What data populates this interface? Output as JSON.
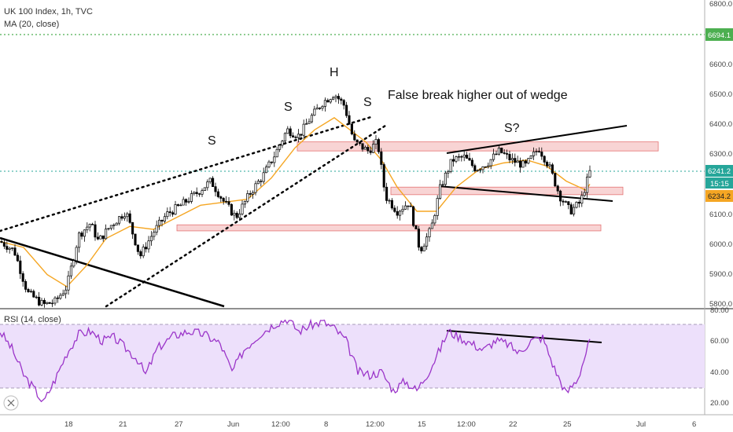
{
  "header": {
    "symbol_line": "UK 100 Index, 1h, TVC",
    "indicator_line": "MA (20, close)"
  },
  "annotations": {
    "s1": "S",
    "s2": "S",
    "h": "H",
    "s3": "S",
    "s_q": "S?",
    "note": "False break higher out of wedge"
  },
  "rsi": {
    "label": "RSI (14, close)"
  },
  "price_axis": {
    "ticks": [
      "6800.0",
      "6700.0",
      "6600.0",
      "6500.0",
      "6400.0",
      "6300.0",
      "6200.0",
      "6100.0",
      "6000.0",
      "5900.0",
      "5800.0"
    ],
    "badges": {
      "level_6694": "6694.1",
      "last": "6241.2",
      "countdown": "15:15",
      "ma_value": "6234.2"
    }
  },
  "rsi_axis": {
    "ticks": [
      "80.00",
      "60.00",
      "40.00",
      "20.00"
    ]
  },
  "time_axis": {
    "ticks": [
      "18",
      "21",
      "27",
      "Jun",
      "12:00",
      "8",
      "12:00",
      "15",
      "12:00",
      "22",
      "25",
      "Jul",
      "6"
    ]
  },
  "colors": {
    "candle": "#000000",
    "ma": "#f5a623",
    "rsi_line": "#9b35c9",
    "rsi_band": "#e8d6fa",
    "zone_fill": "#f6c5c5",
    "zone_border": "#e57373",
    "level_green": "#4caf50",
    "badge_green": "#4caf50"
  },
  "chart_data": {
    "type": "candlestick",
    "symbol": "UK 100 Index",
    "timeframe": "1h",
    "price_range": [
      5790,
      6800
    ],
    "rsi_range": [
      15,
      80
    ],
    "rsi_levels": [
      70,
      30
    ],
    "price_path": [
      [
        0,
        6010
      ],
      [
        18,
        5980
      ],
      [
        35,
        5840
      ],
      [
        55,
        5800
      ],
      [
        70,
        5810
      ],
      [
        85,
        5860
      ],
      [
        100,
        6030
      ],
      [
        115,
        6070
      ],
      [
        125,
        6010
      ],
      [
        140,
        6060
      ],
      [
        160,
        6110
      ],
      [
        178,
        5960
      ],
      [
        195,
        6040
      ],
      [
        212,
        6100
      ],
      [
        230,
        6130
      ],
      [
        250,
        6170
      ],
      [
        268,
        6210
      ],
      [
        285,
        6140
      ],
      [
        300,
        6090
      ],
      [
        318,
        6170
      ],
      [
        335,
        6230
      ],
      [
        350,
        6300
      ],
      [
        365,
        6380
      ],
      [
        380,
        6360
      ],
      [
        395,
        6420
      ],
      [
        410,
        6470
      ],
      [
        425,
        6500
      ],
      [
        438,
        6460
      ],
      [
        450,
        6340
      ],
      [
        468,
        6310
      ],
      [
        480,
        6340
      ],
      [
        490,
        6160
      ],
      [
        505,
        6110
      ],
      [
        520,
        6140
      ],
      [
        534,
        5980
      ],
      [
        548,
        6050
      ],
      [
        560,
        6190
      ],
      [
        575,
        6280
      ],
      [
        590,
        6290
      ],
      [
        605,
        6250
      ],
      [
        620,
        6270
      ],
      [
        635,
        6310
      ],
      [
        650,
        6280
      ],
      [
        668,
        6260
      ],
      [
        685,
        6320
      ],
      [
        698,
        6260
      ],
      [
        712,
        6160
      ],
      [
        725,
        6110
      ],
      [
        738,
        6140
      ],
      [
        750,
        6240
      ]
    ],
    "ma_path": [
      [
        0,
        6010
      ],
      [
        30,
        5990
      ],
      [
        60,
        5900
      ],
      [
        85,
        5860
      ],
      [
        110,
        5930
      ],
      [
        135,
        6020
      ],
      [
        165,
        6060
      ],
      [
        195,
        6050
      ],
      [
        225,
        6090
      ],
      [
        255,
        6130
      ],
      [
        285,
        6140
      ],
      [
        315,
        6150
      ],
      [
        345,
        6220
      ],
      [
        375,
        6320
      ],
      [
        400,
        6380
      ],
      [
        425,
        6420
      ],
      [
        445,
        6380
      ],
      [
        465,
        6340
      ],
      [
        485,
        6280
      ],
      [
        505,
        6190
      ],
      [
        530,
        6110
      ],
      [
        555,
        6110
      ],
      [
        580,
        6190
      ],
      [
        610,
        6250
      ],
      [
        640,
        6270
      ],
      [
        670,
        6280
      ],
      [
        695,
        6260
      ],
      [
        720,
        6210
      ],
      [
        745,
        6180
      ],
      [
        750,
        6200
      ]
    ],
    "rsi_path": [
      [
        0,
        66
      ],
      [
        15,
        55
      ],
      [
        30,
        38
      ],
      [
        45,
        28
      ],
      [
        55,
        20
      ],
      [
        70,
        35
      ],
      [
        85,
        52
      ],
      [
        100,
        64
      ],
      [
        115,
        66
      ],
      [
        130,
        60
      ],
      [
        145,
        62
      ],
      [
        160,
        55
      ],
      [
        175,
        48
      ],
      [
        185,
        38
      ],
      [
        200,
        55
      ],
      [
        220,
        63
      ],
      [
        240,
        66
      ],
      [
        260,
        64
      ],
      [
        280,
        58
      ],
      [
        295,
        40
      ],
      [
        310,
        54
      ],
      [
        330,
        64
      ],
      [
        350,
        71
      ],
      [
        365,
        74
      ],
      [
        380,
        66
      ],
      [
        395,
        70
      ],
      [
        410,
        72
      ],
      [
        425,
        68
      ],
      [
        440,
        60
      ],
      [
        455,
        40
      ],
      [
        470,
        38
      ],
      [
        485,
        40
      ],
      [
        500,
        28
      ],
      [
        515,
        34
      ],
      [
        530,
        28
      ],
      [
        545,
        40
      ],
      [
        560,
        55
      ],
      [
        570,
        66
      ],
      [
        585,
        62
      ],
      [
        600,
        58
      ],
      [
        615,
        54
      ],
      [
        630,
        60
      ],
      [
        645,
        58
      ],
      [
        660,
        52
      ],
      [
        675,
        60
      ],
      [
        690,
        62
      ],
      [
        705,
        42
      ],
      [
        720,
        26
      ],
      [
        735,
        36
      ],
      [
        750,
        60
      ]
    ],
    "horizontal_level": 6694.1,
    "last_price": 6241.2,
    "ma_value": 6234.2,
    "zones": [
      {
        "x": [
          378,
          837
        ],
        "y": [
          6310,
          6340
        ]
      },
      {
        "x": [
          497,
          792
        ],
        "y": [
          6165,
          6190
        ]
      },
      {
        "x": [
          225,
          764
        ],
        "y": [
          6045,
          6065
        ]
      }
    ]
  }
}
